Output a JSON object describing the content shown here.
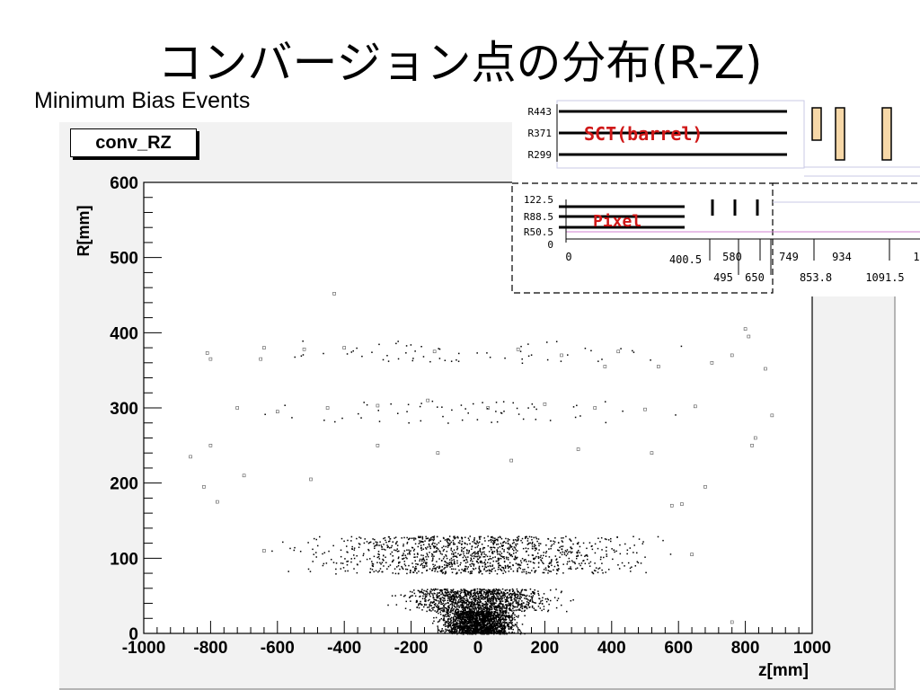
{
  "slide": {
    "title": "コンバージョン点の分布(R-Z)",
    "subtitle": "Minimum Bias Events"
  },
  "histogram": {
    "label": "conv_RZ"
  },
  "chart_data": {
    "type": "scatter",
    "title": "conv_RZ",
    "xlabel": "z[mm]",
    "ylabel": "R[mm]",
    "xlim": [
      -1000,
      1000
    ],
    "ylim": [
      0,
      600
    ],
    "xticks": [
      "-1000",
      "-800",
      "-600",
      "-400",
      "-200",
      "0",
      "200",
      "400",
      "600",
      "800",
      "1000"
    ],
    "yticks": [
      "0",
      "100",
      "200",
      "300",
      "400",
      "500",
      "600"
    ],
    "grid": false,
    "legend": "none",
    "point_color": "#000000",
    "distribution_bands": [
      {
        "r_min": 0,
        "r_max": 30,
        "z_min": -150,
        "z_max": 150,
        "density": "very high"
      },
      {
        "r_min": 30,
        "r_max": 60,
        "z_min": -300,
        "z_max": 300,
        "density": "high"
      },
      {
        "r_min": 80,
        "r_max": 130,
        "z_min": -650,
        "z_max": 650,
        "density": "high"
      },
      {
        "r_min": 280,
        "r_max": 310,
        "z_min": -750,
        "z_max": 750,
        "density": "low"
      },
      {
        "r_min": 360,
        "r_max": 390,
        "z_min": -800,
        "z_max": 800,
        "density": "low"
      }
    ],
    "points": [
      {
        "z": -430,
        "r": 452
      },
      {
        "z": 800,
        "r": 405
      },
      {
        "z": 810,
        "r": 395
      },
      {
        "z": 880,
        "r": 290
      },
      {
        "z": -800,
        "r": 365
      },
      {
        "z": -810,
        "r": 373
      },
      {
        "z": -650,
        "r": 365
      },
      {
        "z": -640,
        "r": 380
      },
      {
        "z": -520,
        "r": 378
      },
      {
        "z": -400,
        "r": 380
      },
      {
        "z": -130,
        "r": 375
      },
      {
        "z": 120,
        "r": 378
      },
      {
        "z": 250,
        "r": 370
      },
      {
        "z": 380,
        "r": 355
      },
      {
        "z": 420,
        "r": 375
      },
      {
        "z": 540,
        "r": 355
      },
      {
        "z": 700,
        "r": 360
      },
      {
        "z": 760,
        "r": 370
      },
      {
        "z": 860,
        "r": 352
      },
      {
        "z": -720,
        "r": 300
      },
      {
        "z": -600,
        "r": 295
      },
      {
        "z": -450,
        "r": 300
      },
      {
        "z": -300,
        "r": 303
      },
      {
        "z": -150,
        "r": 310
      },
      {
        "z": 30,
        "r": 300
      },
      {
        "z": 200,
        "r": 305
      },
      {
        "z": 350,
        "r": 300
      },
      {
        "z": 500,
        "r": 298
      },
      {
        "z": 650,
        "r": 302
      },
      {
        "z": 820,
        "r": 250
      },
      {
        "z": 830,
        "r": 260
      },
      {
        "z": -860,
        "r": 235
      },
      {
        "z": -800,
        "r": 250
      },
      {
        "z": -700,
        "r": 210
      },
      {
        "z": -500,
        "r": 205
      },
      {
        "z": -300,
        "r": 250
      },
      {
        "z": -120,
        "r": 240
      },
      {
        "z": 100,
        "r": 230
      },
      {
        "z": 300,
        "r": 245
      },
      {
        "z": 520,
        "r": 240
      },
      {
        "z": 680,
        "r": 195
      },
      {
        "z": -820,
        "r": 195
      },
      {
        "z": -780,
        "r": 175
      },
      {
        "z": 580,
        "r": 170
      },
      {
        "z": 610,
        "r": 172
      },
      {
        "z": 760,
        "r": 15
      },
      {
        "z": -640,
        "r": 110
      },
      {
        "z": 640,
        "r": 105
      }
    ]
  },
  "inset": {
    "layers_sct": [
      "R443",
      "R371",
      "R299"
    ],
    "sct_label": "SCT(barrel)",
    "layers_pixel": [
      "122.5",
      "R88.5",
      "R50.5"
    ],
    "pixel_label": "Pixel",
    "axis_zero": "0",
    "axis_x_zero": "0",
    "z_ticks_top": [
      "400.5",
      "580",
      "749",
      "934",
      "1"
    ],
    "z_ticks_bottom": [
      "495",
      "650",
      "853.8",
      "1091.5"
    ],
    "line_color": "#000000",
    "label_color": "#d01818",
    "endcap_color": "#f7d8a8"
  }
}
